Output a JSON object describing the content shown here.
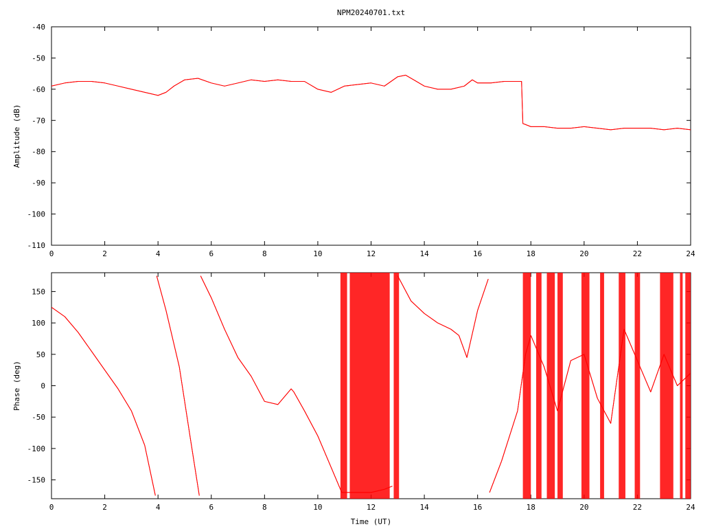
{
  "chart_data": [
    {
      "type": "line",
      "title": "NPM20240701.txt",
      "xlabel": "",
      "ylabel": "Amplitude (dB)",
      "xlim": [
        0,
        24
      ],
      "ylim": [
        -110,
        -40
      ],
      "x_ticks": [
        "0",
        "2",
        "4",
        "6",
        "8",
        "10",
        "12",
        "14",
        "16",
        "18",
        "20",
        "22",
        "24"
      ],
      "y_ticks": [
        "-40",
        "-50",
        "-60",
        "-70",
        "-80",
        "-90",
        "-100",
        "-110"
      ],
      "grid": false,
      "series_color": "#ff0000",
      "series": [
        {
          "x": [
            0,
            0.5,
            1,
            1.5,
            2,
            2.5,
            3,
            3.5,
            4,
            4.3,
            4.6,
            5,
            5.5,
            6,
            6.5,
            7,
            7.5,
            8,
            8.5,
            9,
            9.5,
            10,
            10.5,
            11,
            11.5,
            12,
            12.5,
            13,
            13.3,
            13.6,
            14,
            14.5,
            15,
            15.5,
            15.8,
            16,
            16.5,
            17,
            17.5,
            17.65,
            17.7,
            18,
            18.5,
            19,
            19.5,
            20,
            20.5,
            21,
            21.5,
            22,
            22.5,
            23,
            23.5,
            24
          ],
          "y": [
            -59,
            -58,
            -57.5,
            -57.5,
            -58,
            -59,
            -60,
            -61,
            -62,
            -61,
            -59,
            -57,
            -56.5,
            -58,
            -59,
            -58,
            -57,
            -57.5,
            -57,
            -57.5,
            -57.5,
            -60,
            -61,
            -59,
            -58.5,
            -58,
            -59,
            -56,
            -55.5,
            -57,
            -59,
            -60,
            -60,
            -59,
            -57,
            -58,
            -58,
            -57.5,
            -57.5,
            -57.5,
            -71,
            -72,
            -72,
            -72.5,
            -72.5,
            -72,
            -72.5,
            -73,
            -72.5,
            -72.5,
            -72.5,
            -73,
            -72.5,
            -73
          ]
        }
      ]
    },
    {
      "type": "line",
      "title": "",
      "xlabel": "Time (UT)",
      "ylabel": "Phase (deg)",
      "xlim": [
        0,
        24
      ],
      "ylim": [
        -180,
        180
      ],
      "x_ticks": [
        "0",
        "2",
        "4",
        "6",
        "8",
        "10",
        "12",
        "14",
        "16",
        "18",
        "20",
        "22",
        "24"
      ],
      "y_ticks": [
        "150",
        "100",
        "50",
        "0",
        "-50",
        "-100",
        "-150"
      ],
      "grid": false,
      "series_color": "#ff0000",
      "series": [
        {
          "x": [
            0,
            0.5,
            1,
            1.5,
            2,
            2.5,
            3,
            3.5,
            3.9,
            3.95,
            4.3,
            4.8,
            5.2,
            5.55,
            5.6,
            6,
            6.5,
            7,
            7.5,
            8,
            8.5,
            9,
            9.1,
            9.5,
            10,
            10.5,
            10.9,
            11.2,
            12,
            12.5,
            12.8,
            13,
            13.5,
            14,
            14.5,
            15,
            15.3,
            15.6,
            16,
            16.4,
            16.45,
            16.9,
            17.5,
            17.8,
            18,
            18.5,
            19,
            19.5,
            20,
            20.5,
            21,
            21.5,
            22,
            22.5,
            23,
            23.5,
            24
          ],
          "y": [
            125,
            110,
            85,
            55,
            25,
            -5,
            -40,
            -95,
            -175,
            175,
            120,
            30,
            -80,
            -175,
            175,
            140,
            90,
            45,
            15,
            -25,
            -30,
            -5,
            -10,
            -40,
            -80,
            -130,
            -170,
            -170,
            -170,
            -165,
            -160,
            175,
            135,
            115,
            100,
            90,
            80,
            45,
            120,
            170,
            -170,
            -120,
            -40,
            50,
            80,
            30,
            -40,
            40,
            50,
            -20,
            -60,
            90,
            40,
            -10,
            50,
            0,
            20
          ]
        }
      ],
      "wrap_bands": [
        [
          10.85,
          11.1
        ],
        [
          11.2,
          12.7
        ],
        [
          12.85,
          13.05
        ],
        [
          17.7,
          18.0
        ],
        [
          18.2,
          18.4
        ],
        [
          18.6,
          18.9
        ],
        [
          19.0,
          19.2
        ],
        [
          19.9,
          20.2
        ],
        [
          20.6,
          20.75
        ],
        [
          21.3,
          21.55
        ],
        [
          21.9,
          22.1
        ],
        [
          22.85,
          23.35
        ],
        [
          23.6,
          23.7
        ],
        [
          23.8,
          24.0
        ]
      ]
    }
  ]
}
